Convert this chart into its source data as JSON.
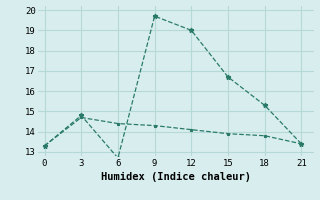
{
  "xlabel": "Humidex (Indice chaleur)",
  "line1_x": [
    0,
    3,
    6,
    9,
    12,
    15,
    18,
    21
  ],
  "line1_y": [
    13.3,
    14.8,
    12.7,
    19.7,
    19.0,
    16.7,
    15.3,
    13.4
  ],
  "line2_x": [
    0,
    3,
    6,
    9,
    12,
    15,
    18,
    21
  ],
  "line2_y": [
    13.3,
    14.7,
    14.4,
    14.3,
    14.1,
    13.9,
    13.8,
    13.4
  ],
  "line_color": "#2a7a6a",
  "bg_color": "#d8eeee",
  "grid_color": "#b5d8d8",
  "xlim": [
    -0.5,
    22
  ],
  "ylim": [
    12.8,
    20.2
  ],
  "xticks": [
    0,
    3,
    6,
    9,
    12,
    15,
    18,
    21
  ],
  "yticks": [
    13,
    14,
    15,
    16,
    17,
    18,
    19,
    20
  ],
  "tick_fontsize": 6.5,
  "label_fontsize": 7.5
}
